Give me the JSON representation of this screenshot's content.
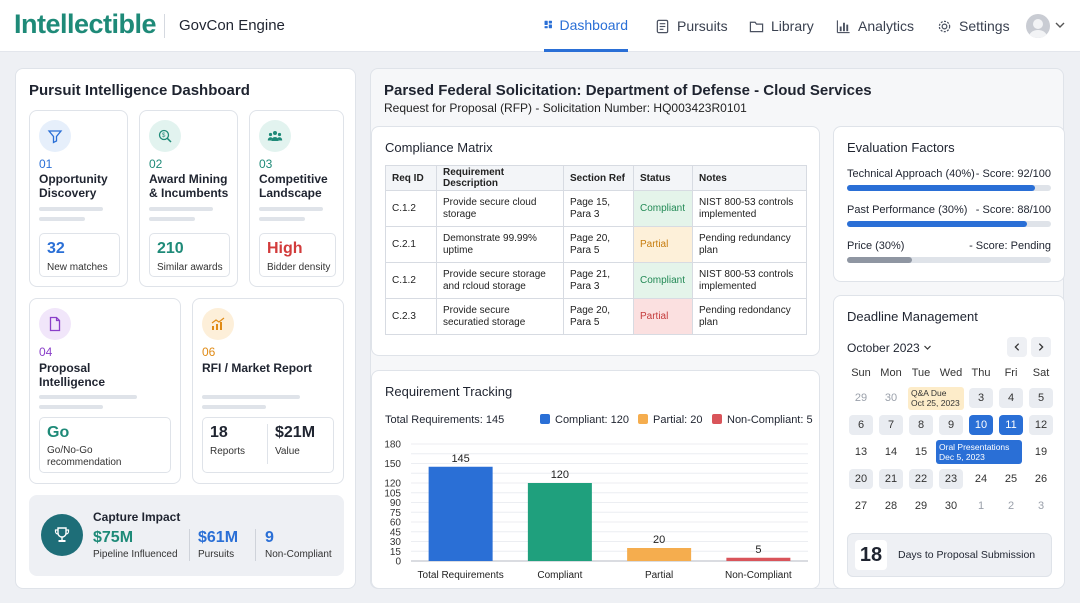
{
  "brand": {
    "logo": "Intellectible",
    "app": "GovCon Engine"
  },
  "nav": [
    {
      "label": "Dashboard",
      "icon": "dashboard-icon",
      "active": true
    },
    {
      "label": "Pursuits",
      "icon": "document-icon"
    },
    {
      "label": "Library",
      "icon": "folder-icon"
    },
    {
      "label": "Analytics",
      "icon": "bar-chart-icon"
    },
    {
      "label": "Settings",
      "icon": "gear-icon"
    }
  ],
  "left": {
    "title": "Pursuit Intelligence Dashboard",
    "cards": [
      {
        "num": "01",
        "name1": "Opportunity",
        "name2": "Discovery",
        "stat": "32",
        "stat_label": "New matches",
        "icon": "filter-icon",
        "color": "#2a6fd6"
      },
      {
        "num": "02",
        "name1": "Award Mining",
        "name2": "& Incumbents",
        "stat": "210",
        "stat_label": "Similar awards",
        "icon": "search-dollar-icon",
        "color": "#1e8a78"
      },
      {
        "num": "03",
        "name1": "Competitive",
        "name2": "Landscape",
        "stat": "High",
        "stat_label": "Bidder density",
        "icon": "people-icon",
        "color": "#1e8a78",
        "stat_color": "#d23b3b"
      },
      {
        "num": "04",
        "name1": "Proposal",
        "name2": "Intelligence",
        "stat": "Go",
        "stat_label": "Go/No-Go",
        "stat_label2": "recommendation",
        "icon": "file-icon",
        "color": "#8a3fc9",
        "stat_color": "#1e8a78"
      },
      {
        "num": "06",
        "name1": "RFI / Market Report",
        "name2": "",
        "stat": "18",
        "stat_label": "Reports",
        "stat2": "$21M",
        "stat2_label": "Value",
        "icon": "chart-up-icon",
        "color": "#e08b16"
      }
    ],
    "capture": {
      "title": "Capture Impact",
      "icon": "trophy-icon",
      "items": [
        {
          "value": "$75M",
          "label": "Pipeline Influenced"
        },
        {
          "value": "$61M",
          "label": "Pursuits"
        },
        {
          "value": "9",
          "label": "Non-Compliant"
        }
      ]
    }
  },
  "solicitation": {
    "title": "Parsed Federal Solicitation: Department of Defense - Cloud Services",
    "subtitle": "Request for Proposal (RFP) - Solicitation Number: HQ003423R0101"
  },
  "matrix": {
    "title": "Compliance Matrix",
    "headers": [
      "Req ID",
      "Requirement Description",
      "Section Ref",
      "Status",
      "Notes"
    ],
    "rows": [
      {
        "id": "C.1.2",
        "desc1": "Provide secure cloud",
        "desc2": "storage",
        "ref1": "Page 15,",
        "ref2": "Para 3",
        "status": "Compliant",
        "n1": "NIST 800-53 controls",
        "n2": "implemented"
      },
      {
        "id": "C.2.1",
        "desc1": "Demonstrate 99.99%",
        "desc2": "uptime",
        "ref1": "Page 20,",
        "ref2": "Para 5",
        "status": "Partial",
        "n1": "Pending redundancy",
        "n2": "plan"
      },
      {
        "id": "C.1.2",
        "desc1": "Provide secure storage",
        "desc2": "and rcloud storage",
        "ref1": "Page 21,",
        "ref2": "Para 3",
        "status": "Compliant",
        "n1": "NIST 800-53 controls",
        "n2": "implemented"
      },
      {
        "id": "C.2.3",
        "desc1": "Provide secure",
        "desc2": "securatied storage",
        "ref1": "Page 20,",
        "ref2": "Para 5",
        "status": "Partial",
        "n1": "Pending redondancy",
        "n2": "plan"
      }
    ]
  },
  "evaluation": {
    "title": "Evaluation Factors",
    "factors": [
      {
        "label": "Technical Approach (40%)",
        "score": "- Score: 92/100",
        "fill": 0.92,
        "color": "#2a6fd6"
      },
      {
        "label": "Past Performance (30%)",
        "score": "- Score: 88/100",
        "fill": 0.88,
        "color": "#2a6fd6"
      },
      {
        "label": "Price (30%)",
        "score": "- Score: Pending",
        "fill": 0.32,
        "color": "#8f96a2"
      }
    ]
  },
  "tracking": {
    "title": "Requirement Tracking",
    "total_label": "Total Requirements: 145",
    "legend": [
      {
        "label": "Compliant: 120",
        "color": "#2a6fd6"
      },
      {
        "label": "Partial: 20",
        "color": "#f5ad4e"
      },
      {
        "label": "Non-Compliant: 5",
        "color": "#d9545a"
      }
    ]
  },
  "chart_data": {
    "type": "bar",
    "categories": [
      "Total Requirements",
      "Compliant",
      "Partial",
      "Non-Compliant"
    ],
    "values": [
      145,
      120,
      20,
      5
    ],
    "colors": [
      "#2a6fd6",
      "#1fa07d",
      "#f5ad4e",
      "#d9545a"
    ],
    "yticks": [
      0,
      15,
      30,
      45,
      60,
      75,
      90,
      105,
      120,
      135,
      150,
      165,
      180
    ],
    "ylim": [
      0,
      180
    ],
    "yticks_shown": [
      0,
      15,
      30,
      45,
      60,
      75,
      90,
      105,
      120,
      150,
      180
    ]
  },
  "deadline": {
    "title": "Deadline Management",
    "month": "October 2023",
    "weekdays": [
      "Sun",
      "Mon",
      "Tue",
      "Wed",
      "Thu",
      "Fri",
      "Sat"
    ],
    "weeks": [
      [
        "29",
        "30",
        "",
        "",
        "3",
        "4",
        "5"
      ],
      [
        "6",
        "7",
        "8",
        "9",
        "10",
        "11",
        "12"
      ],
      [
        "13",
        "14",
        "15",
        "",
        "",
        "",
        "19"
      ],
      [
        "20",
        "21",
        "22",
        "23",
        "24",
        "25",
        "26"
      ],
      [
        "27",
        "28",
        "29",
        "30",
        "1",
        "2",
        "3"
      ]
    ],
    "event1": {
      "line1": "Q&A Due",
      "line2": "Oct 25, 2023"
    },
    "event2": {
      "line1": "Oral Presentations",
      "line2": "Dec 5, 2023"
    },
    "countdown": {
      "value": "18",
      "label": "Days to Proposal Submission"
    }
  }
}
